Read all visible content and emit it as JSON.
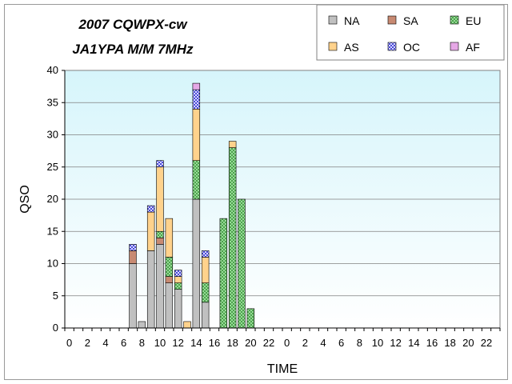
{
  "chart_data": {
    "type": "bar",
    "stacked": true,
    "title_lines": [
      "2007 CQWPX-cw",
      "JA1YPA  M/M  7MHz"
    ],
    "xlabel": "TIME",
    "ylabel": "QSO",
    "ylim": [
      0,
      40
    ],
    "yticks": [
      0,
      5,
      10,
      15,
      20,
      25,
      30,
      35,
      40
    ],
    "grid": "horizontal",
    "legend_position": "top-right",
    "categories": [
      "0",
      "1",
      "2",
      "3",
      "4",
      "5",
      "6",
      "7",
      "8",
      "9",
      "10",
      "11",
      "12",
      "13",
      "14",
      "15",
      "16",
      "17",
      "18",
      "19",
      "20",
      "21",
      "22",
      "23",
      "0",
      "1",
      "2",
      "3",
      "4",
      "5",
      "6",
      "7",
      "8",
      "9",
      "10",
      "11",
      "12",
      "13",
      "14",
      "15",
      "16",
      "17",
      "18",
      "19",
      "20",
      "21",
      "22",
      "23"
    ],
    "x_tick_labels": [
      "0",
      "2",
      "4",
      "6",
      "8",
      "10",
      "12",
      "14",
      "16",
      "18",
      "20",
      "22",
      "0",
      "2",
      "4",
      "6",
      "8",
      "10",
      "12",
      "14",
      "16",
      "18",
      "20",
      "22"
    ],
    "series": [
      {
        "name": "NA",
        "color": "#c0c0c0",
        "pattern": "none",
        "values": [
          0,
          0,
          0,
          0,
          0,
          0,
          0,
          10,
          1,
          12,
          13,
          7,
          6,
          0,
          20,
          4,
          0,
          0,
          0,
          0,
          0,
          0,
          0,
          0,
          0,
          0,
          0,
          0,
          0,
          0,
          0,
          0,
          0,
          0,
          0,
          0,
          0,
          0,
          0,
          0,
          0,
          0,
          0,
          0,
          0,
          0,
          0,
          0
        ]
      },
      {
        "name": "SA",
        "color": "#c88a72",
        "pattern": "none",
        "values": [
          0,
          0,
          0,
          0,
          0,
          0,
          0,
          2,
          0,
          0,
          1,
          1,
          0,
          0,
          0,
          0,
          0,
          0,
          0,
          0,
          0,
          0,
          0,
          0,
          0,
          0,
          0,
          0,
          0,
          0,
          0,
          0,
          0,
          0,
          0,
          0,
          0,
          0,
          0,
          0,
          0,
          0,
          0,
          0,
          0,
          0,
          0,
          0
        ]
      },
      {
        "name": "EU",
        "color": "#a6e6a6",
        "pattern": "crosshatch",
        "values": [
          0,
          0,
          0,
          0,
          0,
          0,
          0,
          0,
          0,
          0,
          1,
          3,
          1,
          0,
          6,
          3,
          0,
          17,
          28,
          20,
          3,
          0,
          0,
          0,
          0,
          0,
          0,
          0,
          0,
          0,
          0,
          0,
          0,
          0,
          0,
          0,
          0,
          0,
          0,
          0,
          0,
          0,
          0,
          0,
          0,
          0,
          0,
          0
        ]
      },
      {
        "name": "AS",
        "color": "#ffd28c",
        "pattern": "none",
        "values": [
          0,
          0,
          0,
          0,
          0,
          0,
          0,
          0,
          0,
          6,
          10,
          6,
          1,
          1,
          8,
          4,
          0,
          0,
          1,
          0,
          0,
          0,
          0,
          0,
          0,
          0,
          0,
          0,
          0,
          0,
          0,
          0,
          0,
          0,
          0,
          0,
          0,
          0,
          0,
          0,
          0,
          0,
          0,
          0,
          0,
          0,
          0,
          0
        ]
      },
      {
        "name": "OC",
        "color": "#c8c8ff",
        "pattern": "checker",
        "values": [
          0,
          0,
          0,
          0,
          0,
          0,
          0,
          1,
          0,
          1,
          1,
          0,
          1,
          0,
          3,
          1,
          0,
          0,
          0,
          0,
          0,
          0,
          0,
          0,
          0,
          0,
          0,
          0,
          0,
          0,
          0,
          0,
          0,
          0,
          0,
          0,
          0,
          0,
          0,
          0,
          0,
          0,
          0,
          0,
          0,
          0,
          0,
          0
        ]
      },
      {
        "name": "AF",
        "color": "#e6a8e6",
        "pattern": "none",
        "values": [
          0,
          0,
          0,
          0,
          0,
          0,
          0,
          0,
          0,
          0,
          0,
          0,
          0,
          0,
          1,
          0,
          0,
          0,
          0,
          0,
          0,
          0,
          0,
          0,
          0,
          0,
          0,
          0,
          0,
          0,
          0,
          0,
          0,
          0,
          0,
          0,
          0,
          0,
          0,
          0,
          0,
          0,
          0,
          0,
          0,
          0,
          0,
          0
        ]
      }
    ],
    "plot_background": "#e0f8fc"
  }
}
